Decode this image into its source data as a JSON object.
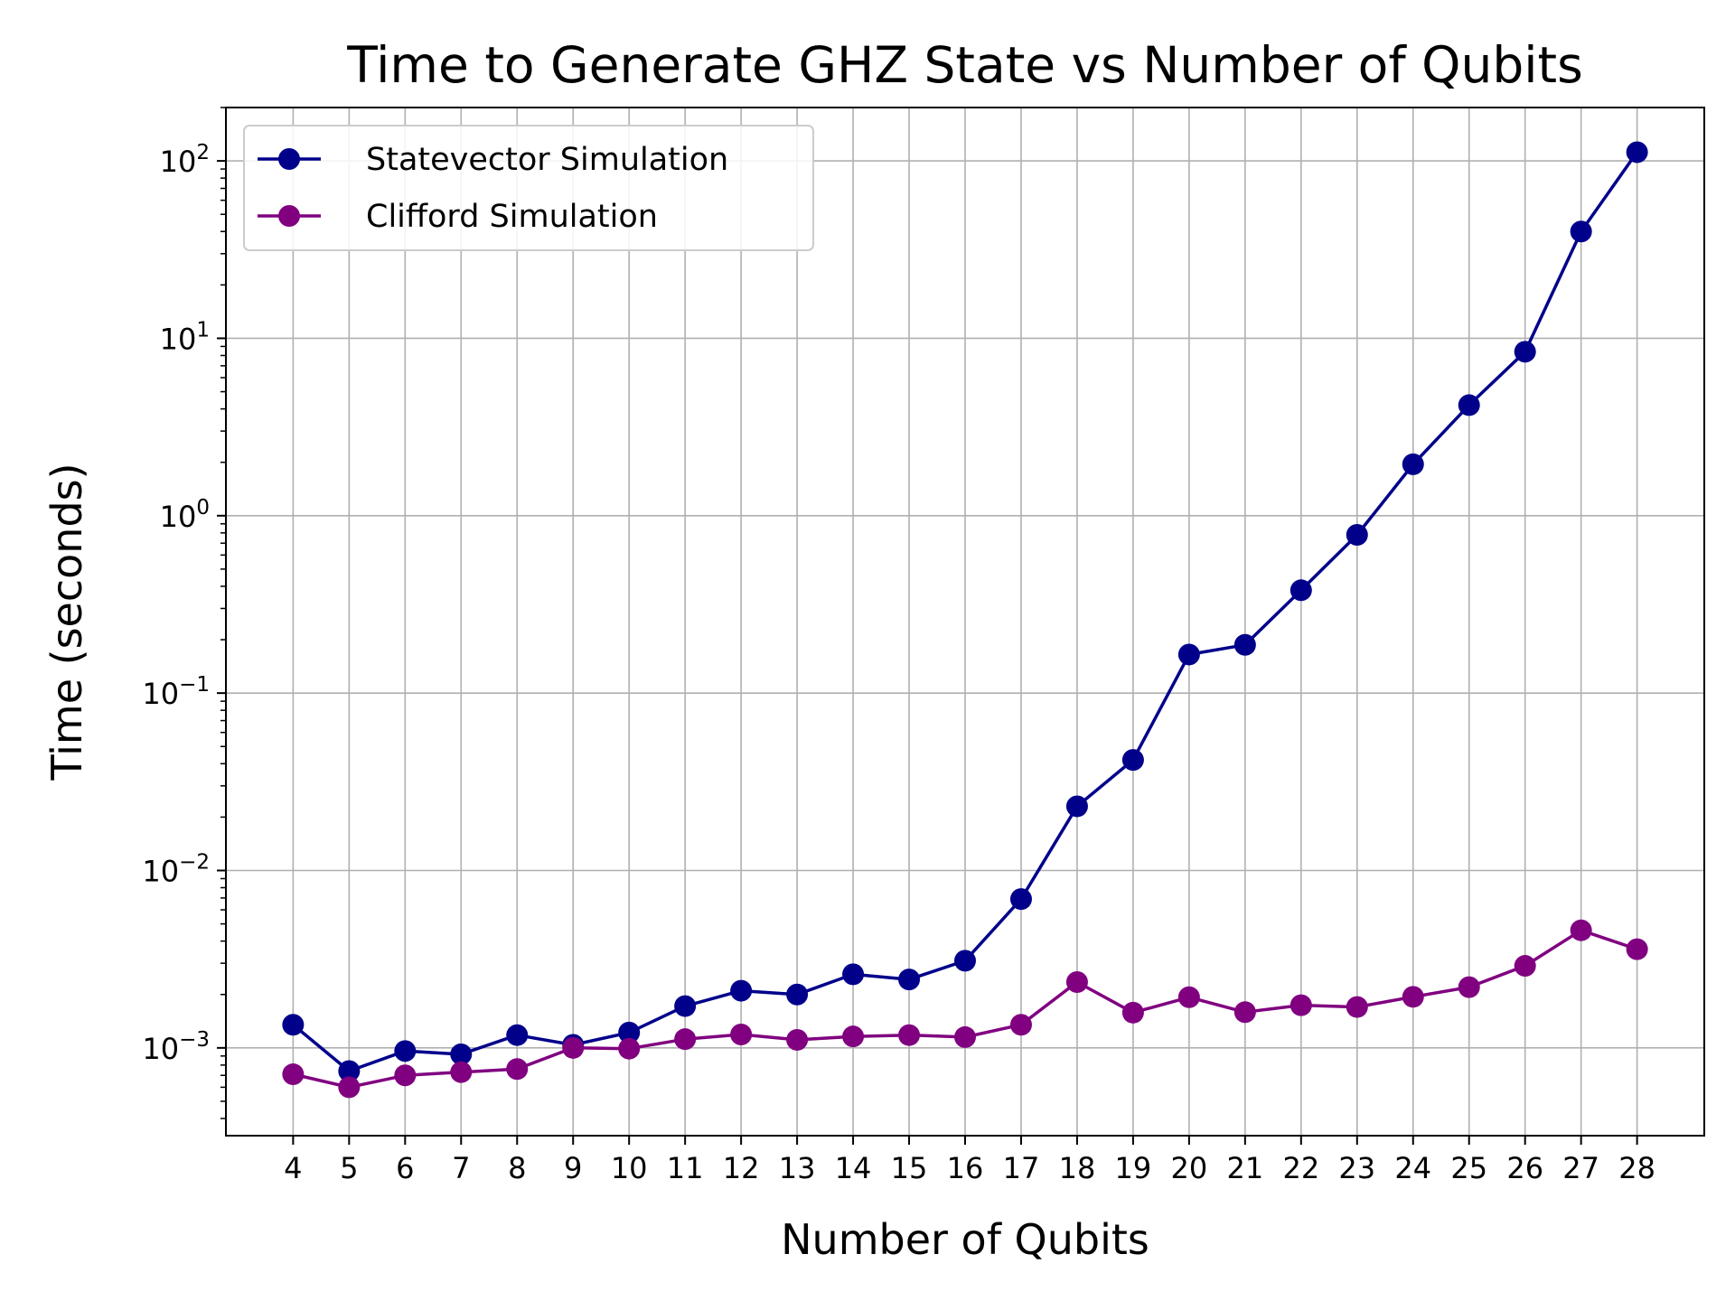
{
  "chart_data": {
    "type": "line",
    "title": "Time to Generate GHZ State vs Number of Qubits",
    "xlabel": "Number of Qubits",
    "ylabel": "Time (seconds)",
    "yscale": "log",
    "ylim": [
      0.00032,
      200
    ],
    "grid": true,
    "legend_position": "upper-left",
    "x": [
      4,
      5,
      6,
      7,
      8,
      9,
      10,
      11,
      12,
      13,
      14,
      15,
      16,
      17,
      18,
      19,
      20,
      21,
      22,
      23,
      24,
      25,
      26,
      27,
      28
    ],
    "x_tick_labels": [
      "4",
      "5",
      "6",
      "7",
      "8",
      "9",
      "10",
      "11",
      "12",
      "13",
      "14",
      "15",
      "16",
      "17",
      "18",
      "19",
      "20",
      "21",
      "22",
      "23",
      "24",
      "25",
      "26",
      "27",
      "28"
    ],
    "y_ticks": [
      {
        "value": 0.001,
        "base": "10",
        "exp": "−3"
      },
      {
        "value": 0.01,
        "base": "10",
        "exp": "−2"
      },
      {
        "value": 0.1,
        "base": "10",
        "exp": "−1"
      },
      {
        "value": 1,
        "base": "10",
        "exp": "0"
      },
      {
        "value": 10,
        "base": "10",
        "exp": "1"
      },
      {
        "value": 100,
        "base": "10",
        "exp": "2"
      }
    ],
    "series": [
      {
        "name": "Statevector Simulation",
        "color": "#00008b",
        "values": [
          0.00135,
          0.00074,
          0.00096,
          0.00092,
          0.00118,
          0.00104,
          0.00122,
          0.00172,
          0.0021,
          0.002,
          0.0026,
          0.00243,
          0.0031,
          0.0069,
          0.023,
          0.042,
          0.165,
          0.187,
          0.38,
          0.78,
          1.95,
          4.2,
          8.4,
          40,
          112
        ]
      },
      {
        "name": "Clifford Simulation",
        "color": "#800080",
        "values": [
          0.00071,
          0.0006,
          0.0007,
          0.00073,
          0.00076,
          0.001,
          0.00099,
          0.00112,
          0.00119,
          0.00111,
          0.00116,
          0.00118,
          0.00115,
          0.00135,
          0.00235,
          0.00158,
          0.00193,
          0.00159,
          0.00174,
          0.0017,
          0.00194,
          0.0022,
          0.0029,
          0.0046,
          0.0036
        ]
      }
    ]
  }
}
